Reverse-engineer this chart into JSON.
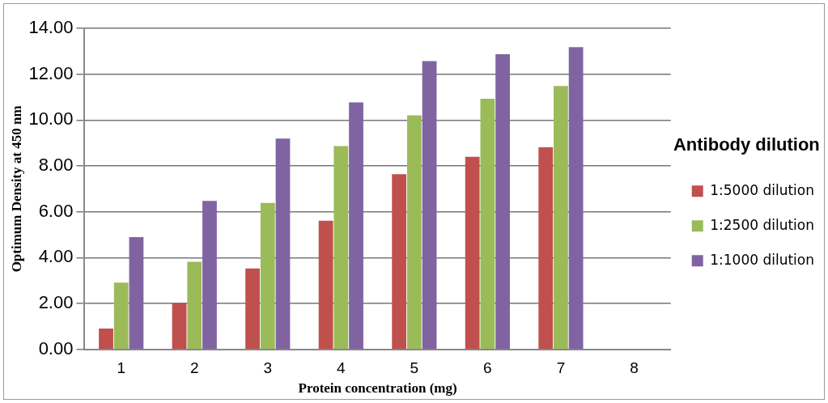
{
  "chart_data": {
    "type": "bar",
    "xlabel": "Protein concentration (mg)",
    "ylabel": "Optimum Density at 450 nm",
    "legend_title": "Antibody dilution",
    "categories": [
      "1",
      "2",
      "3",
      "4",
      "5",
      "6",
      "7",
      "8"
    ],
    "series": [
      {
        "name": "1:5000 dilution",
        "color": "#c0504d",
        "values": [
          0.91,
          2.02,
          3.53,
          5.61,
          7.64,
          8.4,
          8.81,
          null
        ]
      },
      {
        "name": "1:2500 dilution",
        "color": "#9bbb59",
        "values": [
          2.91,
          3.82,
          6.39,
          8.87,
          10.21,
          10.93,
          11.49,
          null
        ]
      },
      {
        "name": "1:1000 dilution",
        "color": "#8064a2",
        "values": [
          4.9,
          6.48,
          9.19,
          10.77,
          12.57,
          12.87,
          13.18,
          null
        ]
      }
    ],
    "ylim": [
      0,
      14
    ],
    "yticks": [
      {
        "value": 0,
        "label": "0.00"
      },
      {
        "value": 2,
        "label": "2.00"
      },
      {
        "value": 4,
        "label": "4.00"
      },
      {
        "value": 6,
        "label": "6.00"
      },
      {
        "value": 8,
        "label": "8.00"
      },
      {
        "value": 10,
        "label": "10.00"
      },
      {
        "value": 12,
        "label": "12.00"
      },
      {
        "value": 14,
        "label": "14.00"
      }
    ],
    "grid": "y",
    "legend": "right"
  }
}
